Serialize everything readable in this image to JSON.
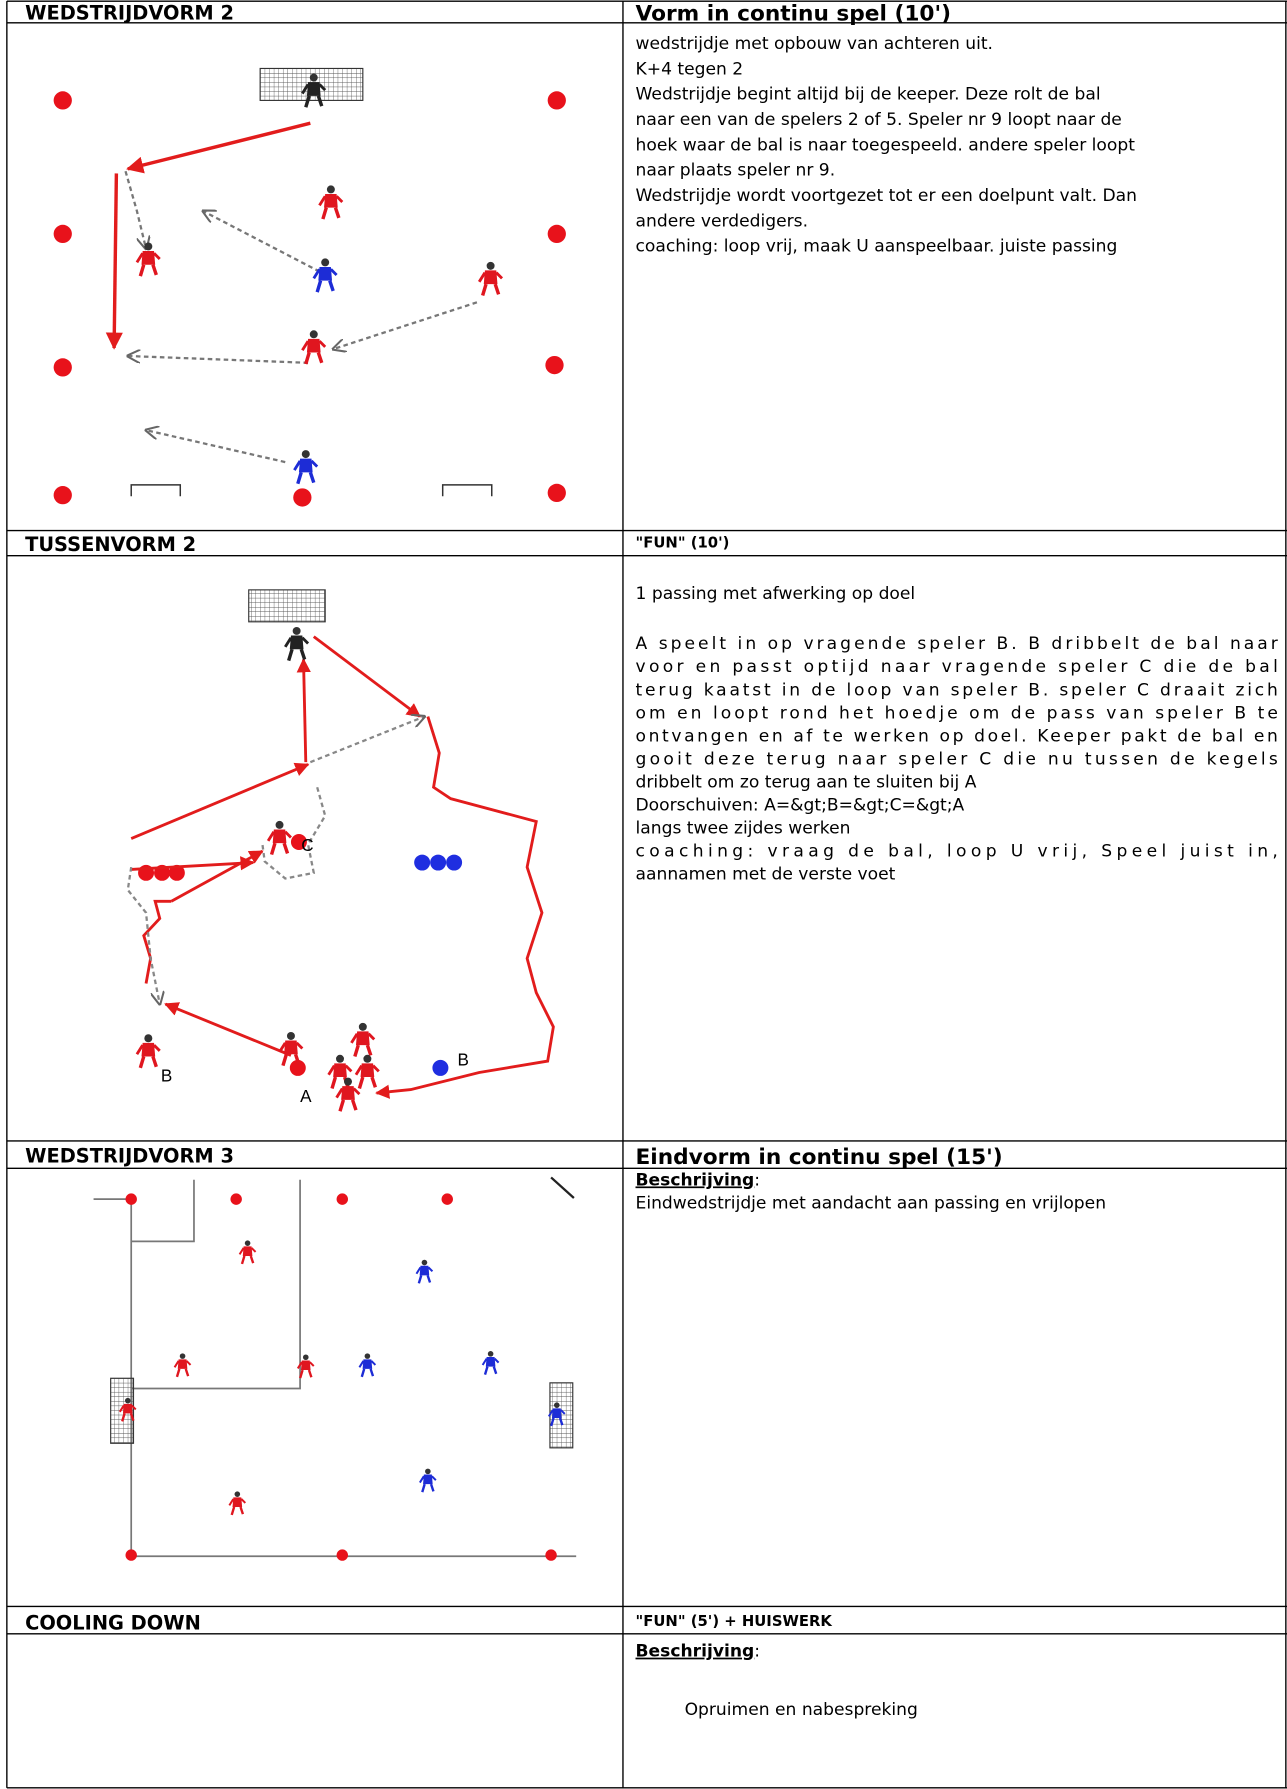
{
  "sections": [
    {
      "left_header": "WEDSTRIJDVORM 2",
      "right_header": "Vorm in continu spel (10')",
      "lines": [
        "wedstrijdje met opbouw van achteren uit.",
        "K+4 tegen 2",
        "Wedstrijdje begint altijd bij de keeper. Deze rolt de bal",
        "naar een van de spelers 2 of 5. Speler nr 9 loopt naar de",
        "hoek waar de bal is naar toegespeeld. andere speler loopt",
        "naar plaats speler nr 9.",
        "Wedstrijdje wordt voortgezet tot er een doelpunt valt. Dan",
        "andere verdedigers.",
        "coaching: loop vrij, maak U aanspeelbaar. juiste passing"
      ]
    },
    {
      "left_header": "TUSSENVORM 2",
      "right_header": "\"FUN\" (10')",
      "paragraphs": [
        [
          "1 passing met afwerking op doel"
        ],
        [
          "A speelt in op vragende speler B. B dribbelt de bal naar",
          "voor en passt optijd naar vragende speler C die de bal",
          "terug kaatst in de loop van speler B. speler C draait zich",
          "om en loopt rond het hoedje om de pass van speler B te",
          "ontvangen en af te werken op doel. Keeper pakt de bal en",
          "gooit deze terug naar speler C die nu tussen de kegels",
          "dribbelt om zo terug aan te sluiten bij A"
        ],
        [
          "Doorschuiven: A=&gt;B=&gt;C=&gt;A"
        ],
        [
          "langs twee zijdes werken"
        ],
        [
          "coaching: vraag de bal, loop U vrij, Speel juist in,",
          "aannamen met de verste voet"
        ]
      ],
      "diagram_labels": [
        "C",
        "A",
        "B",
        "B"
      ]
    },
    {
      "left_header": "WEDSTRIJDVORM 3",
      "right_header": "Eindvorm in continu spel (15')",
      "label": "Beschrijving",
      "label_suffix": ":",
      "lines": [
        "Eindwedstrijdje met aandacht aan passing en vrijlopen"
      ]
    },
    {
      "left_header": "COOLING DOWN",
      "right_header": "\"FUN\" (5') + HUISWERK",
      "label": "Beschrijving",
      "label_suffix": ":",
      "lines": [
        "Opruimen en nabespreking"
      ]
    }
  ]
}
